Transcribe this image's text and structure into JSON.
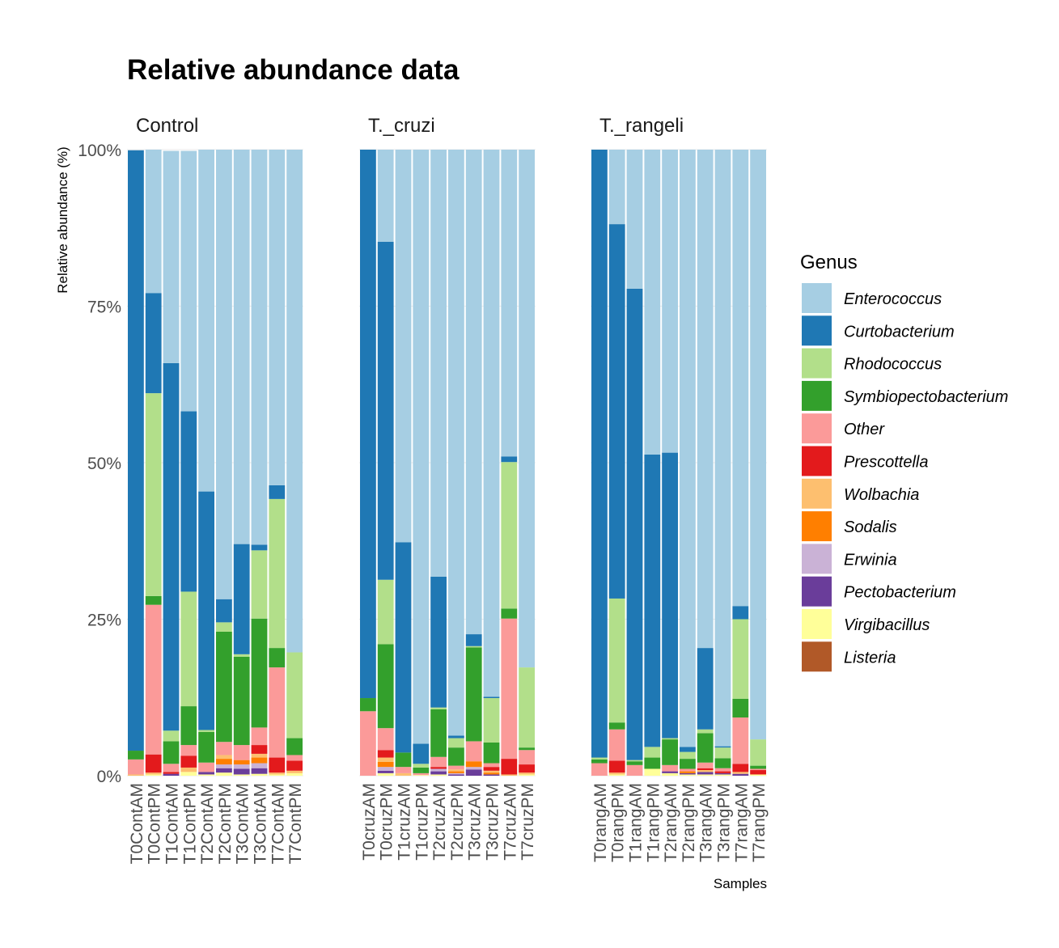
{
  "chart_data": {
    "type": "bar",
    "stacked": true,
    "title": "Relative abundance data",
    "ylabel": "Relative abundance (%)",
    "xlabel": "Samples",
    "ylim": [
      0,
      100
    ],
    "y_ticks": [
      "0%",
      "25%",
      "50%",
      "75%",
      "100%"
    ],
    "legend_title": "Genus",
    "legend_position": "right",
    "genera": [
      "Enterococcus",
      "Curtobacterium",
      "Rhodococcus",
      "Symbiopectobacterium",
      "Other",
      "Prescottella",
      "Wolbachia",
      "Sodalis",
      "Erwinia",
      "Pectobacterium",
      "Virgibacillus",
      "Listeria"
    ],
    "colors": {
      "Enterococcus": "#a6cee3",
      "Curtobacterium": "#1f78b4",
      "Rhodococcus": "#b2df8a",
      "Symbiopectobacterium": "#33a02c",
      "Other": "#fb9a99",
      "Prescottella": "#e31a1c",
      "Wolbachia": "#fdbf6f",
      "Sodalis": "#ff7f00",
      "Erwinia": "#cab2d6",
      "Pectobacterium": "#6a3d9a",
      "Virgibacillus": "#ffff99",
      "Listeria": "#b15928"
    },
    "panels": [
      {
        "name": "Control",
        "samples": [
          {
            "label": "T0ContAM",
            "values": {
              "Curtobacterium": 95.9,
              "Symbiopectobacterium": 1.4,
              "Other": 2.4,
              "Wolbachia": 0.2
            }
          },
          {
            "label": "T0ContPM",
            "values": {
              "Enterococcus": 22.9,
              "Curtobacterium": 16.0,
              "Rhodococcus": 32.4,
              "Symbiopectobacterium": 1.4,
              "Other": 23.9,
              "Prescottella": 2.9,
              "Wolbachia": 0.3,
              "Virgibacillus": 0.2
            }
          },
          {
            "label": "T1ContAM",
            "values": {
              "Enterococcus": 33.9,
              "Curtobacterium": 58.7,
              "Rhodococcus": 1.7,
              "Symbiopectobacterium": 3.6,
              "Other": 1.3,
              "Prescottella": 0.3,
              "Pectobacterium": 0.3
            }
          },
          {
            "label": "T1ContPM",
            "values": {
              "Enterococcus": 41.6,
              "Curtobacterium": 28.8,
              "Rhodococcus": 18.3,
              "Symbiopectobacterium": 6.2,
              "Other": 1.7,
              "Prescottella": 1.9,
              "Wolbachia": 0.7,
              "Virgibacillus": 0.6
            }
          },
          {
            "label": "T2ContAM",
            "values": {
              "Enterococcus": 54.6,
              "Curtobacterium": 38.1,
              "Rhodococcus": 0.3,
              "Symbiopectobacterium": 4.9,
              "Other": 1.5,
              "Pectobacterium": 0.4,
              "Virgibacillus": 0.2
            }
          },
          {
            "label": "T2ContPM",
            "values": {
              "Enterococcus": 71.8,
              "Curtobacterium": 3.7,
              "Rhodococcus": 1.5,
              "Symbiopectobacterium": 17.6,
              "Other": 2.1,
              "Wolbachia": 0.6,
              "Sodalis": 0.9,
              "Erwinia": 0.6,
              "Pectobacterium": 0.7,
              "Virgibacillus": 0.5
            }
          },
          {
            "label": "T3ContAM",
            "values": {
              "Enterococcus": 63.0,
              "Curtobacterium": 17.6,
              "Rhodococcus": 0.4,
              "Symbiopectobacterium": 14.1,
              "Other": 2.4,
              "Sodalis": 0.7,
              "Erwinia": 0.7,
              "Pectobacterium": 0.9,
              "Virgibacillus": 0.2
            }
          },
          {
            "label": "T3ContAM",
            "values": {
              "Enterococcus": 63.1,
              "Curtobacterium": 0.9,
              "Rhodococcus": 10.9,
              "Symbiopectobacterium": 17.4,
              "Other": 2.8,
              "Prescottella": 1.4,
              "Wolbachia": 0.6,
              "Sodalis": 0.9,
              "Erwinia": 0.8,
              "Pectobacterium": 0.9,
              "Virgibacillus": 0.3
            }
          },
          {
            "label": "T7ContAM",
            "values": {
              "Enterococcus": 53.6,
              "Curtobacterium": 2.2,
              "Rhodococcus": 23.8,
              "Symbiopectobacterium": 3.1,
              "Other": 14.4,
              "Prescottella": 2.4,
              "Wolbachia": 0.3,
              "Virgibacillus": 0.2
            }
          },
          {
            "label": "T7ContPM",
            "values": {
              "Enterococcus": 80.3,
              "Rhodococcus": 13.7,
              "Symbiopectobacterium": 2.7,
              "Other": 0.9,
              "Prescottella": 1.6,
              "Wolbachia": 0.4,
              "Virgibacillus": 0.4
            }
          }
        ]
      },
      {
        "name": "T._cruzi",
        "samples": [
          {
            "label": "T0cruzAM",
            "values": {
              "Curtobacterium": 87.6,
              "Symbiopectobacterium": 2.1,
              "Other": 10.3
            }
          },
          {
            "label": "T0cruzPM",
            "values": {
              "Enterococcus": 14.7,
              "Curtobacterium": 54.0,
              "Rhodococcus": 10.3,
              "Symbiopectobacterium": 13.4,
              "Other": 3.5,
              "Prescottella": 1.2,
              "Wolbachia": 0.7,
              "Sodalis": 0.8,
              "Erwinia": 0.6,
              "Pectobacterium": 0.4,
              "Virgibacillus": 0.4
            }
          },
          {
            "label": "T1cruzAM",
            "values": {
              "Enterococcus": 62.7,
              "Curtobacterium": 33.6,
              "Symbiopectobacterium": 2.3,
              "Other": 1.0,
              "Wolbachia": 0.4
            }
          },
          {
            "label": "T1cruzPM",
            "values": {
              "Enterococcus": 94.9,
              "Curtobacterium": 3.2,
              "Rhodococcus": 0.6,
              "Symbiopectobacterium": 0.9,
              "Other": 0.3,
              "Virgibacillus": 0.1
            }
          },
          {
            "label": "T2cruzAM",
            "values": {
              "Enterococcus": 68.2,
              "Curtobacterium": 20.9,
              "Rhodococcus": 0.3,
              "Symbiopectobacterium": 7.6,
              "Other": 1.6,
              "Prescottella": 0.3,
              "Erwinia": 0.4,
              "Pectobacterium": 0.5,
              "Virgibacillus": 0.2
            }
          },
          {
            "label": "T2cruzPM",
            "values": {
              "Enterococcus": 93.6,
              "Curtobacterium": 0.4,
              "Rhodococcus": 1.5,
              "Symbiopectobacterium": 2.9,
              "Other": 0.6,
              "Wolbachia": 0.3,
              "Sodalis": 0.3,
              "Erwinia": 0.2,
              "Pectobacterium": 0.2
            }
          },
          {
            "label": "T3cruzAM",
            "values": {
              "Enterococcus": 77.4,
              "Curtobacterium": 1.9,
              "Rhodococcus": 0.2,
              "Symbiopectobacterium": 15.0,
              "Other": 3.2,
              "Sodalis": 0.9,
              "Erwinia": 0.4,
              "Pectobacterium": 1.0
            }
          },
          {
            "label": "T3cruzPM",
            "values": {
              "Enterococcus": 87.4,
              "Curtobacterium": 0.2,
              "Rhodococcus": 7.1,
              "Symbiopectobacterium": 3.3,
              "Other": 0.6,
              "Prescottella": 0.6,
              "Wolbachia": 0.3,
              "Sodalis": 0.3,
              "Pectobacterium": 0.2
            }
          },
          {
            "label": "T7cruzAM",
            "values": {
              "Enterococcus": 49.0,
              "Curtobacterium": 0.9,
              "Rhodococcus": 23.4,
              "Symbiopectobacterium": 1.6,
              "Other": 22.4,
              "Prescottella": 2.5,
              "Wolbachia": 0.2
            }
          },
          {
            "label": "T7cruzPM",
            "values": {
              "Enterococcus": 82.7,
              "Rhodococcus": 12.8,
              "Symbiopectobacterium": 0.4,
              "Other": 2.3,
              "Prescottella": 1.3,
              "Wolbachia": 0.3,
              "Virgibacillus": 0.2
            }
          }
        ]
      },
      {
        "name": "T._rangeli",
        "samples": [
          {
            "label": "T0rangAM",
            "values": {
              "Curtobacterium": 97.1,
              "Rhodococcus": 0.3,
              "Symbiopectobacterium": 0.6,
              "Other": 2.0
            }
          },
          {
            "label": "T0rangPM",
            "values": {
              "Enterococcus": 11.9,
              "Curtobacterium": 59.8,
              "Rhodococcus": 19.8,
              "Symbiopectobacterium": 1.1,
              "Other": 5.0,
              "Prescottella": 1.9,
              "Wolbachia": 0.3,
              "Virgibacillus": 0.2
            }
          },
          {
            "label": "T1rangAM",
            "values": {
              "Enterococcus": 22.2,
              "Curtobacterium": 75.3,
              "Rhodococcus": 0.2,
              "Symbiopectobacterium": 0.6,
              "Other": 1.7
            }
          },
          {
            "label": "T1rangPM",
            "values": {
              "Enterococcus": 48.7,
              "Curtobacterium": 46.7,
              "Rhodococcus": 1.7,
              "Symbiopectobacterium": 1.8,
              "Virgibacillus": 1.1
            }
          },
          {
            "label": "T2rangAM",
            "values": {
              "Enterococcus": 48.4,
              "Curtobacterium": 45.6,
              "Rhodococcus": 0.2,
              "Symbiopectobacterium": 4.1,
              "Other": 1.0,
              "Pectobacterium": 0.3,
              "Virgibacillus": 0.4
            }
          },
          {
            "label": "T2rangPM",
            "values": {
              "Enterococcus": 95.4,
              "Curtobacterium": 0.8,
              "Rhodococcus": 1.1,
              "Symbiopectobacterium": 1.6,
              "Other": 0.4,
              "Sodalis": 0.3,
              "Pectobacterium": 0.2,
              "Virgibacillus": 0.2
            }
          },
          {
            "label": "T3rangAM",
            "values": {
              "Enterococcus": 79.6,
              "Curtobacterium": 13.0,
              "Rhodococcus": 0.6,
              "Symbiopectobacterium": 4.7,
              "Other": 0.9,
              "Prescottella": 0.3,
              "Wolbachia": 0.3,
              "Pectobacterium": 0.4,
              "Virgibacillus": 0.2
            }
          },
          {
            "label": "T3rangPM",
            "values": {
              "Enterococcus": 95.3,
              "Curtobacterium": 0.2,
              "Rhodococcus": 1.7,
              "Symbiopectobacterium": 1.6,
              "Other": 0.5,
              "Prescottella": 0.3,
              "Pectobacterium": 0.2,
              "Virgibacillus": 0.2
            }
          },
          {
            "label": "T7rangAM",
            "values": {
              "Enterococcus": 72.9,
              "Curtobacterium": 2.1,
              "Rhodococcus": 12.7,
              "Symbiopectobacterium": 3.0,
              "Other": 7.4,
              "Prescottella": 1.3,
              "Wolbachia": 0.3,
              "Pectobacterium": 0.3
            }
          },
          {
            "label": "T7rangPM",
            "values": {
              "Enterococcus": 94.2,
              "Rhodococcus": 4.2,
              "Symbiopectobacterium": 0.5,
              "Other": 0.2,
              "Prescottella": 0.7,
              "Virgibacillus": 0.2
            }
          }
        ]
      }
    ]
  }
}
